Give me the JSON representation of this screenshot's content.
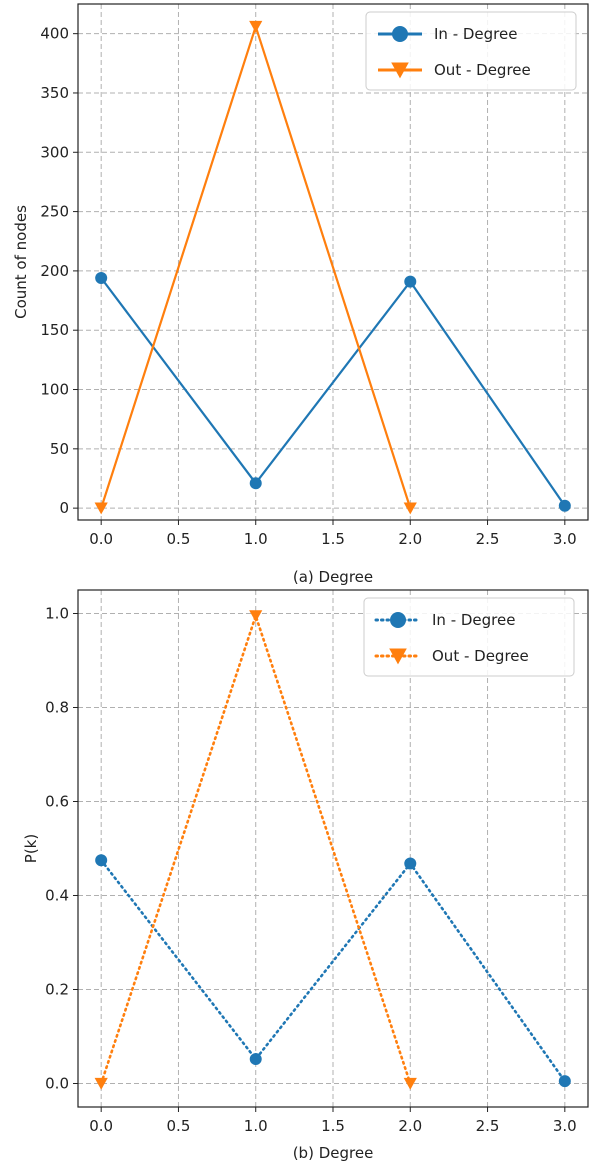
{
  "chart_data": [
    {
      "type": "line",
      "title": "",
      "xlabel": "(a) Degree",
      "ylabel": "Count of nodes",
      "xlim": [
        -0.15,
        3.15
      ],
      "ylim": [
        -10,
        425
      ],
      "x_ticks": [
        0.0,
        0.5,
        1.0,
        1.5,
        2.0,
        2.5,
        3.0
      ],
      "x_tick_labels": [
        "0.0",
        "0.5",
        "1.0",
        "1.5",
        "2.0",
        "2.5",
        "3.0"
      ],
      "y_ticks": [
        0,
        50,
        100,
        150,
        200,
        250,
        300,
        350,
        400
      ],
      "y_tick_labels": [
        "0",
        "50",
        "100",
        "150",
        "200",
        "250",
        "300",
        "350",
        "400"
      ],
      "grid": true,
      "legend_position": "top-right",
      "series": [
        {
          "name": "In - Degree",
          "x": [
            0,
            1,
            2,
            3
          ],
          "values": [
            194,
            21,
            191,
            2
          ],
          "color": "#1f77b4",
          "line_style": "solid",
          "marker": "circle"
        },
        {
          "name": "Out - Degree",
          "x": [
            0,
            1,
            2
          ],
          "values": [
            0,
            406,
            0
          ],
          "color": "#ff7f0e",
          "line_style": "solid",
          "marker": "triangle-down"
        }
      ]
    },
    {
      "type": "line",
      "title": "",
      "xlabel": "(b) Degree",
      "ylabel": "P(k)",
      "xlim": [
        -0.15,
        3.15
      ],
      "ylim": [
        -0.05,
        1.05
      ],
      "x_ticks": [
        0.0,
        0.5,
        1.0,
        1.5,
        2.0,
        2.5,
        3.0
      ],
      "x_tick_labels": [
        "0.0",
        "0.5",
        "1.0",
        "1.5",
        "2.0",
        "2.5",
        "3.0"
      ],
      "y_ticks": [
        0.0,
        0.2,
        0.4,
        0.6,
        0.8,
        1.0
      ],
      "y_tick_labels": [
        "0.0",
        "0.2",
        "0.4",
        "0.6",
        "0.8",
        "1.0"
      ],
      "grid": true,
      "legend_position": "top-right",
      "series": [
        {
          "name": "In - Degree",
          "x": [
            0,
            1,
            2,
            3
          ],
          "values": [
            0.475,
            0.052,
            0.468,
            0.005
          ],
          "color": "#1f77b4",
          "line_style": "dotted",
          "marker": "circle"
        },
        {
          "name": "Out - Degree",
          "x": [
            0,
            1,
            2
          ],
          "values": [
            0.0,
            0.995,
            0.0
          ],
          "color": "#ff7f0e",
          "line_style": "dotted",
          "marker": "triangle-down"
        }
      ]
    }
  ]
}
